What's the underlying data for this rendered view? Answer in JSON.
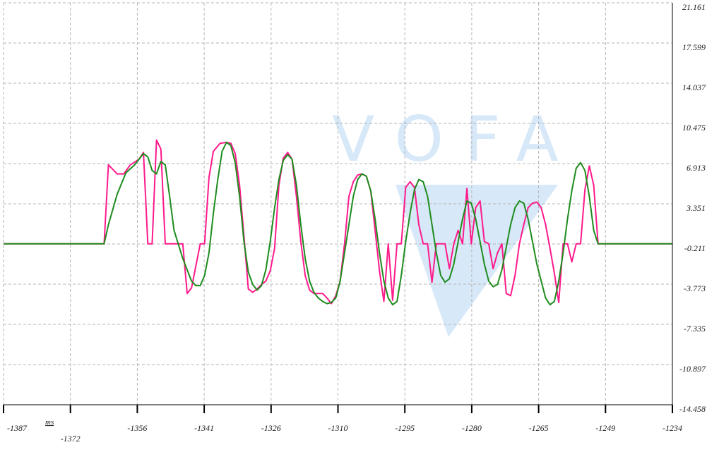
{
  "watermark": {
    "text": "VOFA"
  },
  "colors": {
    "series_a": "#ff1a8c",
    "series_b": "#1e8c1e",
    "grid": "#b4b4b4",
    "axis": "#000000",
    "watermark": "#d7e8f8"
  },
  "chart_data": {
    "type": "line",
    "unit": "ms",
    "xlim": [
      -1387,
      -1234
    ],
    "ylim": [
      -14.458,
      21.161
    ],
    "x_ticks": [
      "-1387",
      "-1372",
      "-1356",
      "-1341",
      "-1326",
      "-1310",
      "-1295",
      "-1280",
      "-1265",
      "-1249",
      "-1234"
    ],
    "y_ticks": [
      "21.161",
      "17.599",
      "14.037",
      "10.475",
      "6.913",
      "3.351",
      "-0.211",
      "-3.773",
      "-7.335",
      "-10.897",
      "-14.458"
    ],
    "grid": true,
    "series": [
      {
        "color": "#ff1a8c",
        "points": [
          [
            -1387,
            -0.2
          ],
          [
            -1364,
            -0.2
          ],
          [
            -1363,
            6.8
          ],
          [
            -1361,
            6.0
          ],
          [
            -1359.5,
            6.0
          ],
          [
            -1358,
            6.8
          ],
          [
            -1356,
            7.3
          ],
          [
            -1355,
            7.9
          ],
          [
            -1354,
            -0.2
          ],
          [
            -1353,
            -0.2
          ],
          [
            -1352,
            9.0
          ],
          [
            -1351,
            8.2
          ],
          [
            -1350,
            -0.2
          ],
          [
            -1348,
            -0.2
          ],
          [
            -1346,
            -0.2
          ],
          [
            -1345,
            -4.6
          ],
          [
            -1344,
            -4.1
          ],
          [
            -1342,
            -0.2
          ],
          [
            -1341,
            -0.2
          ],
          [
            -1340,
            5.7
          ],
          [
            -1339,
            8.0
          ],
          [
            -1337.5,
            8.7
          ],
          [
            -1336,
            8.8
          ],
          [
            -1335,
            8.7
          ],
          [
            -1334,
            7.8
          ],
          [
            -1333,
            5.0
          ],
          [
            -1332,
            0.5
          ],
          [
            -1331,
            -4.2
          ],
          [
            -1330,
            -4.5
          ],
          [
            -1329,
            -4.2
          ],
          [
            -1328,
            -3.8
          ],
          [
            -1327,
            -3.5
          ],
          [
            -1326,
            -2.6
          ],
          [
            -1325,
            -0.6
          ],
          [
            -1324,
            5.0
          ],
          [
            -1323,
            7.4
          ],
          [
            -1322,
            7.9
          ],
          [
            -1321,
            7.3
          ],
          [
            -1320,
            4.0
          ],
          [
            -1319,
            0.0
          ],
          [
            -1318,
            -3.0
          ],
          [
            -1317,
            -4.3
          ],
          [
            -1316,
            -4.6
          ],
          [
            -1314,
            -4.6
          ],
          [
            -1313,
            -5.0
          ],
          [
            -1312,
            -5.5
          ],
          [
            -1311,
            -4.8
          ],
          [
            -1310,
            -3.5
          ],
          [
            -1309,
            -0.2
          ],
          [
            -1308,
            4.0
          ],
          [
            -1307,
            5.3
          ],
          [
            -1306,
            5.9
          ],
          [
            -1305,
            6.0
          ],
          [
            -1304,
            5.8
          ],
          [
            -1303,
            4.5
          ],
          [
            -1302,
            1.0
          ],
          [
            -1301,
            -2.6
          ],
          [
            -1300,
            -5.3
          ],
          [
            -1299,
            -0.2
          ],
          [
            -1298,
            -5.2
          ],
          [
            -1297,
            -0.2
          ],
          [
            -1296,
            -0.2
          ],
          [
            -1295,
            4.8
          ],
          [
            -1294,
            5.3
          ],
          [
            -1293,
            4.8
          ],
          [
            -1292,
            1.5
          ],
          [
            -1291,
            -0.2
          ],
          [
            -1290,
            -0.2
          ],
          [
            -1289,
            -3.6
          ],
          [
            -1288,
            -0.2
          ],
          [
            -1287,
            -0.2
          ],
          [
            -1286,
            -0.2
          ],
          [
            -1285,
            -2.4
          ],
          [
            -1284,
            -0.2
          ],
          [
            -1283,
            1.0
          ],
          [
            -1282,
            -0.2
          ],
          [
            -1281,
            4.7
          ],
          [
            -1280,
            -0.2
          ],
          [
            -1279,
            3.0
          ],
          [
            -1278,
            3.6
          ],
          [
            -1277,
            0.0
          ],
          [
            -1276,
            -0.2
          ],
          [
            -1275,
            -2.4
          ],
          [
            -1274,
            -1.0
          ],
          [
            -1273,
            -0.2
          ],
          [
            -1272,
            -4.6
          ],
          [
            -1271,
            -4.8
          ],
          [
            -1270,
            -3.0
          ],
          [
            -1269,
            -0.2
          ],
          [
            -1268,
            1.5
          ],
          [
            -1267,
            3.0
          ],
          [
            -1266,
            3.4
          ],
          [
            -1265,
            3.5
          ],
          [
            -1264,
            3.0
          ],
          [
            -1263,
            1.5
          ],
          [
            -1262,
            -0.6
          ],
          [
            -1261,
            -2.8
          ],
          [
            -1260,
            -5.4
          ],
          [
            -1259,
            -0.2
          ],
          [
            -1258,
            -0.2
          ],
          [
            -1257,
            -1.8
          ],
          [
            -1256,
            -0.2
          ],
          [
            -1255,
            -0.2
          ],
          [
            -1254,
            4.6
          ],
          [
            -1253,
            6.7
          ],
          [
            -1252,
            5.0
          ],
          [
            -1251,
            -0.2
          ],
          [
            -1249,
            -0.2
          ],
          [
            -1247,
            -0.2
          ],
          [
            -1245,
            -0.2
          ],
          [
            -1234,
            -0.2
          ]
        ]
      },
      {
        "color": "#1e8c1e",
        "points": [
          [
            -1387,
            -0.2
          ],
          [
            -1364,
            -0.2
          ],
          [
            -1363,
            1.5
          ],
          [
            -1361,
            4.2
          ],
          [
            -1359,
            6.1
          ],
          [
            -1357,
            6.8
          ],
          [
            -1355,
            7.8
          ],
          [
            -1354,
            7.5
          ],
          [
            -1353,
            6.3
          ],
          [
            -1352,
            6.0
          ],
          [
            -1351,
            7.1
          ],
          [
            -1350,
            6.8
          ],
          [
            -1349,
            4.0
          ],
          [
            -1348,
            1.0
          ],
          [
            -1346,
            -1.5
          ],
          [
            -1344,
            -3.5
          ],
          [
            -1343,
            -3.9
          ],
          [
            -1342,
            -3.9
          ],
          [
            -1341,
            -3.0
          ],
          [
            -1340,
            -1.0
          ],
          [
            -1339,
            2.5
          ],
          [
            -1338,
            5.5
          ],
          [
            -1337,
            8.0
          ],
          [
            -1336,
            8.8
          ],
          [
            -1335,
            8.5
          ],
          [
            -1334,
            7.0
          ],
          [
            -1333,
            4.0
          ],
          [
            -1332,
            0.0
          ],
          [
            -1331,
            -2.7
          ],
          [
            -1330,
            -3.8
          ],
          [
            -1329,
            -4.3
          ],
          [
            -1328,
            -3.9
          ],
          [
            -1327,
            -2.5
          ],
          [
            -1326,
            0.0
          ],
          [
            -1325,
            3.0
          ],
          [
            -1324,
            5.5
          ],
          [
            -1323,
            7.2
          ],
          [
            -1322,
            7.7
          ],
          [
            -1321,
            7.3
          ],
          [
            -1320,
            5.0
          ],
          [
            -1319,
            1.5
          ],
          [
            -1318,
            -1.5
          ],
          [
            -1317,
            -3.5
          ],
          [
            -1316,
            -4.5
          ],
          [
            -1315,
            -5.0
          ],
          [
            -1314,
            -5.3
          ],
          [
            -1313,
            -5.5
          ],
          [
            -1312,
            -5.4
          ],
          [
            -1311,
            -5.0
          ],
          [
            -1310,
            -3.5
          ],
          [
            -1309,
            -1.0
          ],
          [
            -1308,
            1.5
          ],
          [
            -1307,
            4.0
          ],
          [
            -1306,
            5.5
          ],
          [
            -1305,
            6.0
          ],
          [
            -1304,
            5.8
          ],
          [
            -1303,
            4.5
          ],
          [
            -1302,
            2.0
          ],
          [
            -1301,
            -1.0
          ],
          [
            -1300,
            -3.5
          ],
          [
            -1299,
            -5.0
          ],
          [
            -1298,
            -5.6
          ],
          [
            -1297,
            -5.3
          ],
          [
            -1296,
            -3.0
          ],
          [
            -1295,
            0.0
          ],
          [
            -1294,
            2.5
          ],
          [
            -1293,
            4.6
          ],
          [
            -1292,
            5.5
          ],
          [
            -1291,
            5.3
          ],
          [
            -1290,
            4.0
          ],
          [
            -1289,
            1.5
          ],
          [
            -1288,
            -1.0
          ],
          [
            -1287,
            -3.0
          ],
          [
            -1286,
            -3.6
          ],
          [
            -1285,
            -3.3
          ],
          [
            -1284,
            -2.0
          ],
          [
            -1283,
            0.0
          ],
          [
            -1282,
            2.0
          ],
          [
            -1281,
            3.6
          ],
          [
            -1280,
            3.4
          ],
          [
            -1279,
            2.0
          ],
          [
            -1278,
            0.0
          ],
          [
            -1277,
            -2.0
          ],
          [
            -1276,
            -3.5
          ],
          [
            -1275,
            -4.0
          ],
          [
            -1274,
            -3.8
          ],
          [
            -1273,
            -2.5
          ],
          [
            -1272,
            -0.5
          ],
          [
            -1271,
            1.5
          ],
          [
            -1270,
            3.0
          ],
          [
            -1269,
            3.6
          ],
          [
            -1268,
            3.4
          ],
          [
            -1267,
            2.0
          ],
          [
            -1266,
            0.0
          ],
          [
            -1265,
            -2.0
          ],
          [
            -1264,
            -3.5
          ],
          [
            -1263,
            -5.0
          ],
          [
            -1262,
            -5.6
          ],
          [
            -1261,
            -5.3
          ],
          [
            -1260,
            -3.5
          ],
          [
            -1259,
            -1.0
          ],
          [
            -1258,
            2.0
          ],
          [
            -1257,
            4.5
          ],
          [
            -1256,
            6.5
          ],
          [
            -1255,
            7.0
          ],
          [
            -1254,
            6.3
          ],
          [
            -1253,
            4.0
          ],
          [
            -1252,
            1.0
          ],
          [
            -1251,
            -0.2
          ],
          [
            -1250,
            -0.2
          ],
          [
            -1234,
            -0.2
          ]
        ]
      }
    ]
  }
}
